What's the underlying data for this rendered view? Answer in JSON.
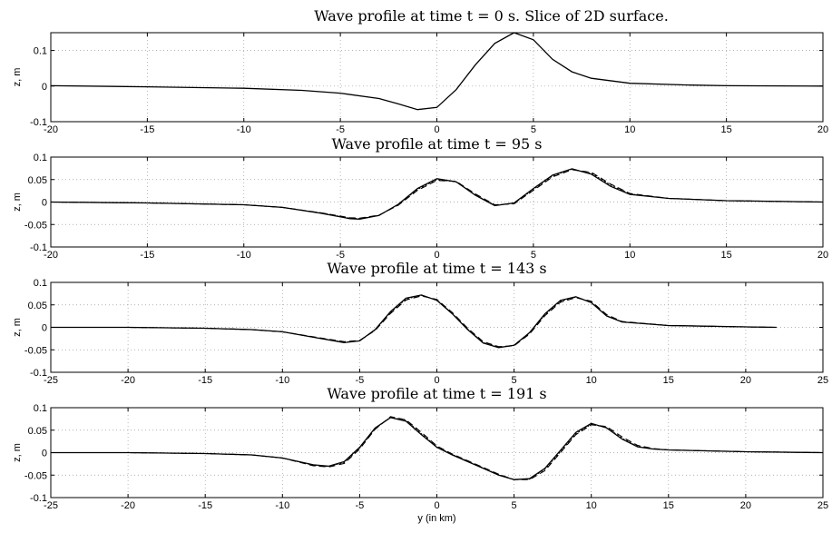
{
  "chart_data": [
    {
      "type": "line",
      "title": "Wave profile at time t = 0 s. Slice of 2D surface.",
      "ylabel": "z, m",
      "xlabel": "",
      "xlim": [
        -20,
        20
      ],
      "ylim": [
        -0.1,
        0.15
      ],
      "xticks": [
        -20,
        -15,
        -10,
        -5,
        0,
        5,
        10,
        15,
        20
      ],
      "yticks": [
        -0.1,
        0,
        0.1
      ],
      "grid": true,
      "series": [
        {
          "style": "solid",
          "x": [
            -20,
            -15,
            -10,
            -7,
            -5,
            -3,
            -2,
            -1,
            0,
            1,
            2,
            3,
            4,
            5,
            6,
            7,
            8,
            10,
            13,
            15,
            20
          ],
          "y": [
            0.001,
            -0.002,
            -0.006,
            -0.012,
            -0.02,
            -0.035,
            -0.05,
            -0.066,
            -0.06,
            -0.01,
            0.06,
            0.12,
            0.15,
            0.13,
            0.075,
            0.04,
            0.022,
            0.008,
            0.003,
            0.001,
            0
          ]
        }
      ]
    },
    {
      "type": "line",
      "title": "Wave profile at time t = 95 s",
      "ylabel": "z, m",
      "xlabel": "",
      "xlim": [
        -20,
        20
      ],
      "ylim": [
        -0.1,
        0.1
      ],
      "xticks": [
        -20,
        -15,
        -10,
        -5,
        0,
        5,
        10,
        15,
        20
      ],
      "yticks": [
        -0.1,
        -0.05,
        0,
        0.05,
        0.1
      ],
      "grid": true,
      "series": [
        {
          "style": "solid",
          "x": [
            -20,
            -15,
            -10,
            -8,
            -6,
            -4.5,
            -4,
            -3,
            -2,
            -1,
            0,
            1,
            2,
            3,
            4,
            5,
            6,
            7,
            8,
            9,
            10,
            12,
            15,
            20
          ],
          "y": [
            0,
            -0.002,
            -0.006,
            -0.012,
            -0.025,
            -0.037,
            -0.038,
            -0.03,
            -0.005,
            0.03,
            0.052,
            0.045,
            0.015,
            -0.008,
            -0.002,
            0.03,
            0.06,
            0.074,
            0.062,
            0.035,
            0.017,
            0.008,
            0.003,
            0
          ]
        },
        {
          "style": "dashed",
          "x": [
            -20,
            -15,
            -10,
            -8,
            -6,
            -4.5,
            -4,
            -3,
            -2,
            -1,
            0,
            1,
            2,
            3,
            4,
            5,
            6,
            7,
            8,
            9,
            10,
            12,
            15,
            20
          ],
          "y": [
            0,
            -0.002,
            -0.006,
            -0.012,
            -0.024,
            -0.035,
            -0.036,
            -0.029,
            -0.007,
            0.026,
            0.048,
            0.046,
            0.018,
            -0.006,
            -0.004,
            0.026,
            0.056,
            0.072,
            0.066,
            0.04,
            0.019,
            0.008,
            0.003,
            0
          ]
        },
        {
          "style": "dotted",
          "x": [
            -20,
            -15,
            -10,
            -8,
            -6,
            -4.5,
            -4,
            -3,
            -2,
            -1,
            0,
            1,
            2,
            3,
            4,
            5,
            6,
            7,
            8,
            9,
            10,
            12,
            15,
            20
          ],
          "y": [
            0,
            -0.002,
            -0.006,
            -0.012,
            -0.024,
            -0.036,
            -0.037,
            -0.03,
            -0.006,
            0.028,
            0.05,
            0.045,
            0.016,
            -0.007,
            -0.003,
            0.028,
            0.058,
            0.073,
            0.064,
            0.038,
            0.018,
            0.008,
            0.003,
            0
          ]
        }
      ]
    },
    {
      "type": "line",
      "title": "Wave profile at time t = 143 s",
      "ylabel": "z, m",
      "xlabel": "",
      "xlim": [
        -25,
        25
      ],
      "ylim": [
        -0.1,
        0.1
      ],
      "xticks": [
        -25,
        -20,
        -15,
        -10,
        -5,
        0,
        5,
        10,
        15,
        20,
        25
      ],
      "yticks": [
        -0.1,
        -0.05,
        0,
        0.05,
        0.1
      ],
      "grid": true,
      "series": [
        {
          "style": "solid",
          "x": [
            -25,
            -20,
            -15,
            -12,
            -10,
            -8,
            -6,
            -5,
            -4,
            -3,
            -2,
            -1,
            0,
            1,
            2,
            3,
            4,
            5,
            6,
            7,
            8,
            9,
            10,
            11,
            12,
            15,
            20,
            22
          ],
          "y": [
            0,
            0,
            -0.002,
            -0.005,
            -0.01,
            -0.022,
            -0.034,
            -0.03,
            -0.005,
            0.035,
            0.065,
            0.072,
            0.06,
            0.03,
            -0.005,
            -0.035,
            -0.045,
            -0.04,
            -0.012,
            0.03,
            0.06,
            0.068,
            0.055,
            0.025,
            0.012,
            0.004,
            0.001,
            0
          ]
        },
        {
          "style": "dashed",
          "x": [
            -25,
            -20,
            -15,
            -12,
            -10,
            -8,
            -6,
            -5,
            -4,
            -3,
            -2,
            -1,
            0,
            1,
            2,
            3,
            4,
            5,
            6,
            7,
            8,
            9,
            10,
            11,
            12,
            15,
            20,
            22
          ],
          "y": [
            0,
            0,
            -0.002,
            -0.005,
            -0.01,
            -0.021,
            -0.032,
            -0.029,
            -0.007,
            0.031,
            0.061,
            0.07,
            0.062,
            0.033,
            -0.002,
            -0.032,
            -0.043,
            -0.041,
            -0.015,
            0.026,
            0.056,
            0.066,
            0.058,
            0.028,
            0.013,
            0.004,
            0.001,
            0
          ]
        },
        {
          "style": "dotted",
          "x": [
            -25,
            -20,
            -15,
            -12,
            -10,
            -8,
            -6,
            -5,
            -4,
            -3,
            -2,
            -1,
            0,
            1,
            2,
            3,
            4,
            5,
            6,
            7,
            8,
            9,
            10,
            11,
            12,
            15,
            20,
            22
          ],
          "y": [
            0,
            0,
            -0.002,
            -0.005,
            -0.01,
            -0.022,
            -0.033,
            -0.03,
            -0.006,
            0.033,
            0.063,
            0.071,
            0.061,
            0.031,
            -0.004,
            -0.034,
            -0.044,
            -0.04,
            -0.013,
            0.028,
            0.058,
            0.067,
            0.056,
            0.026,
            0.012,
            0.004,
            0.001,
            0
          ]
        }
      ]
    },
    {
      "type": "line",
      "title": "Wave profile at time t = 191 s",
      "ylabel": "z, m",
      "xlabel": "y (in km)",
      "xlim": [
        -25,
        25
      ],
      "ylim": [
        -0.1,
        0.1
      ],
      "xticks": [
        -25,
        -20,
        -15,
        -10,
        -5,
        0,
        5,
        10,
        15,
        20,
        25
      ],
      "yticks": [
        -0.1,
        -0.05,
        0,
        0.05,
        0.1
      ],
      "grid": true,
      "series": [
        {
          "style": "solid",
          "x": [
            -25,
            -20,
            -15,
            -12,
            -10,
            -8,
            -7,
            -6,
            -5,
            -4,
            -3,
            -2,
            -1,
            0,
            1,
            2,
            3,
            4,
            5,
            6,
            7,
            8,
            9,
            10,
            11,
            12,
            13,
            14,
            15,
            20,
            25
          ],
          "y": [
            0,
            0,
            -0.002,
            -0.005,
            -0.012,
            -0.027,
            -0.03,
            -0.02,
            0.012,
            0.055,
            0.078,
            0.07,
            0.04,
            0.012,
            -0.005,
            -0.02,
            -0.035,
            -0.05,
            -0.06,
            -0.058,
            -0.035,
            0.005,
            0.045,
            0.065,
            0.055,
            0.03,
            0.013,
            0.008,
            0.006,
            0.002,
            0
          ]
        },
        {
          "style": "dashed",
          "x": [
            -25,
            -20,
            -15,
            -12,
            -10,
            -8,
            -7,
            -6,
            -5,
            -4,
            -3,
            -2,
            -1,
            0,
            1,
            2,
            3,
            4,
            5,
            6,
            7,
            8,
            9,
            10,
            11,
            12,
            13,
            14,
            15,
            20,
            25
          ],
          "y": [
            0,
            0,
            -0.002,
            -0.005,
            -0.012,
            -0.029,
            -0.032,
            -0.024,
            0.008,
            0.052,
            0.08,
            0.073,
            0.045,
            0.015,
            -0.003,
            -0.018,
            -0.033,
            -0.048,
            -0.06,
            -0.06,
            -0.04,
            0,
            0.04,
            0.062,
            0.058,
            0.035,
            0.016,
            0.009,
            0.006,
            0.002,
            0
          ]
        },
        {
          "style": "dotted",
          "x": [
            -25,
            -20,
            -15,
            -12,
            -10,
            -8,
            -7,
            -6,
            -5,
            -4,
            -3,
            -2,
            -1,
            0,
            1,
            2,
            3,
            4,
            5,
            6,
            7,
            8,
            9,
            10,
            11,
            12,
            13,
            14,
            15,
            20,
            25
          ],
          "y": [
            0,
            0,
            -0.002,
            -0.005,
            -0.012,
            -0.028,
            -0.031,
            -0.022,
            0.01,
            0.053,
            0.079,
            0.072,
            0.042,
            0.013,
            -0.004,
            -0.019,
            -0.034,
            -0.049,
            -0.06,
            -0.059,
            -0.037,
            0.002,
            0.042,
            0.063,
            0.056,
            0.032,
            0.014,
            0.008,
            0.006,
            0.002,
            0
          ]
        }
      ]
    }
  ]
}
